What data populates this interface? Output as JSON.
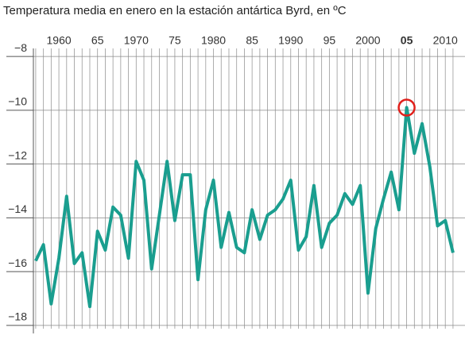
{
  "chart_data": {
    "type": "line",
    "title": "Temperatura media en enero en la estación antártica Byrd, en ºC",
    "x": [
      1957,
      1958,
      1959,
      1960,
      1961,
      1962,
      1963,
      1964,
      1965,
      1966,
      1967,
      1968,
      1969,
      1970,
      1971,
      1972,
      1973,
      1974,
      1975,
      1976,
      1977,
      1978,
      1979,
      1980,
      1981,
      1982,
      1983,
      1984,
      1985,
      1986,
      1987,
      1988,
      1989,
      1990,
      1991,
      1992,
      1993,
      1994,
      1995,
      1996,
      1997,
      1998,
      1999,
      2000,
      2001,
      2002,
      2003,
      2004,
      2005,
      2006,
      2007,
      2008,
      2009,
      2010,
      2011
    ],
    "series": [
      {
        "color": "#1a9e8f",
        "values": [
          -15.6,
          -15.0,
          -17.2,
          -15.5,
          -13.2,
          -15.7,
          -15.3,
          -17.3,
          -14.5,
          -15.2,
          -13.6,
          -13.9,
          -15.5,
          -11.9,
          -12.6,
          -15.9,
          -13.9,
          -11.9,
          -14.1,
          -12.4,
          -12.4,
          -16.3,
          -13.7,
          -12.6,
          -15.1,
          -13.8,
          -15.1,
          -15.3,
          -13.7,
          -14.8,
          -13.9,
          -13.7,
          -13.3,
          -12.6,
          -15.2,
          -14.7,
          -12.8,
          -15.1,
          -14.2,
          -13.9,
          -13.1,
          -13.5,
          -12.8,
          -16.8,
          -14.4,
          -13.3,
          -12.3,
          -13.7,
          -9.9,
          -11.6,
          -10.5,
          -12.1,
          -14.3,
          -14.1,
          -15.3
        ]
      }
    ],
    "highlight_x": 2005,
    "highlight_color": "#e0201b",
    "xlim": [
      1956.7,
      2012.55
    ],
    "xticks": [
      1960,
      {
        "value": 1965,
        "label": "65"
      },
      1970,
      {
        "value": 1975,
        "label": "75"
      },
      1980,
      {
        "value": 1985,
        "label": "85"
      },
      1990,
      {
        "value": 1995,
        "label": "95"
      },
      2000,
      {
        "value": 2005,
        "label": "05"
      },
      2010
    ],
    "ylim": [
      -18.3,
      -7.7
    ],
    "yticks": [
      {
        "value": -8,
        "label": "−8"
      },
      {
        "value": -10,
        "label": "−10"
      },
      {
        "value": -12,
        "label": "−12"
      },
      {
        "value": -14,
        "label": "−14"
      },
      {
        "value": -16,
        "label": "−16"
      },
      {
        "value": -18,
        "label": "−18"
      }
    ],
    "grid": true
  }
}
